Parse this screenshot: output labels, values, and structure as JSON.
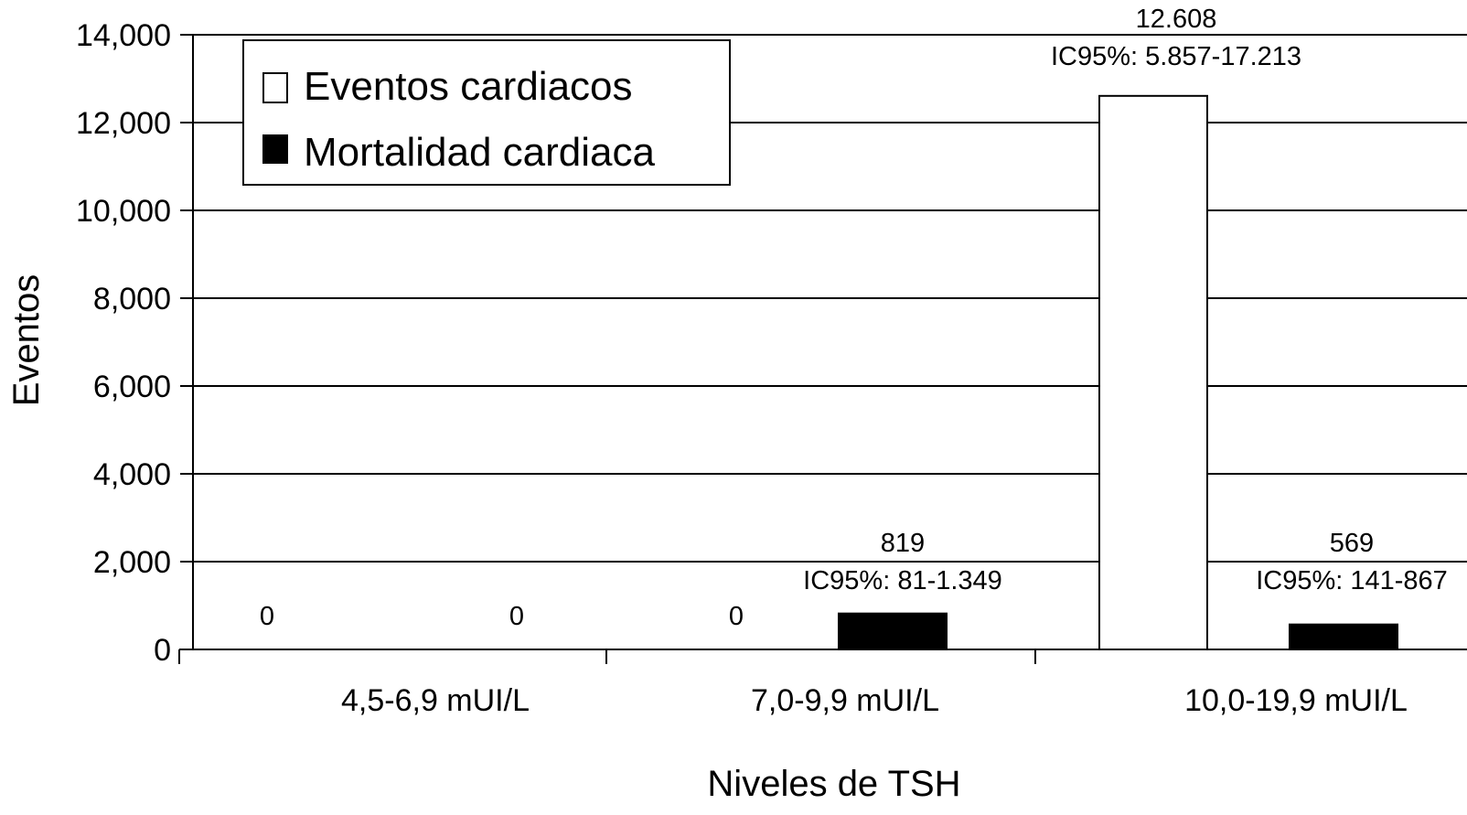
{
  "chart_data": {
    "type": "bar",
    "title": "",
    "xlabel": "Niveles de TSH",
    "ylabel": "Eventos",
    "categories": [
      "4,5-6,9 mUI/L",
      "7,0-9,9 mUI/L",
      "10,0-19,9 mUI/L"
    ],
    "ylim": [
      0,
      14000
    ],
    "yticks": [
      0,
      2000,
      4000,
      6000,
      8000,
      10000,
      12000,
      14000
    ],
    "ytick_labels": [
      "0",
      "2,000",
      "4,000",
      "6,000",
      "8,000",
      "10,000",
      "12,000",
      "14,000"
    ],
    "grid": true,
    "legend_position": "top-left",
    "series": [
      {
        "name": "Eventos cardiacos",
        "color": "#ffffff",
        "values": [
          0,
          0,
          12608
        ],
        "labels": [
          [
            "0"
          ],
          [
            "0"
          ],
          [
            "12.608",
            "IC95%: 5.857-17.213"
          ]
        ]
      },
      {
        "name": "Mortalidad cardiaca",
        "color": "#000000",
        "values": [
          0,
          819,
          569
        ],
        "labels": [
          [
            "0"
          ],
          [
            "819",
            "IC95%: 81-1.349"
          ],
          [
            "569",
            "IC95%: 141-867"
          ]
        ]
      }
    ]
  }
}
